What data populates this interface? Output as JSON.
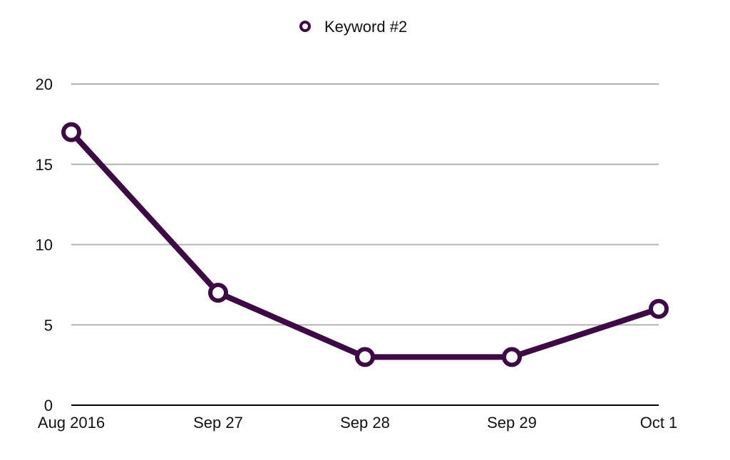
{
  "chart_data": {
    "type": "line",
    "categories": [
      "Aug 2016",
      "Sep 27",
      "Sep 28",
      "Sep 29",
      "Oct 1"
    ],
    "series": [
      {
        "name": "Keyword #2",
        "values": [
          17,
          7,
          3,
          3,
          6
        ]
      }
    ],
    "ylim": [
      0,
      20
    ],
    "yticks": [
      0,
      5,
      10,
      15,
      20
    ],
    "grid": true,
    "legend_position": "top-center",
    "colors": {
      "series": "#3d0a45",
      "grid": "#b3b3b3",
      "axis": "#000000",
      "marker_fill": "#ffffff"
    }
  }
}
